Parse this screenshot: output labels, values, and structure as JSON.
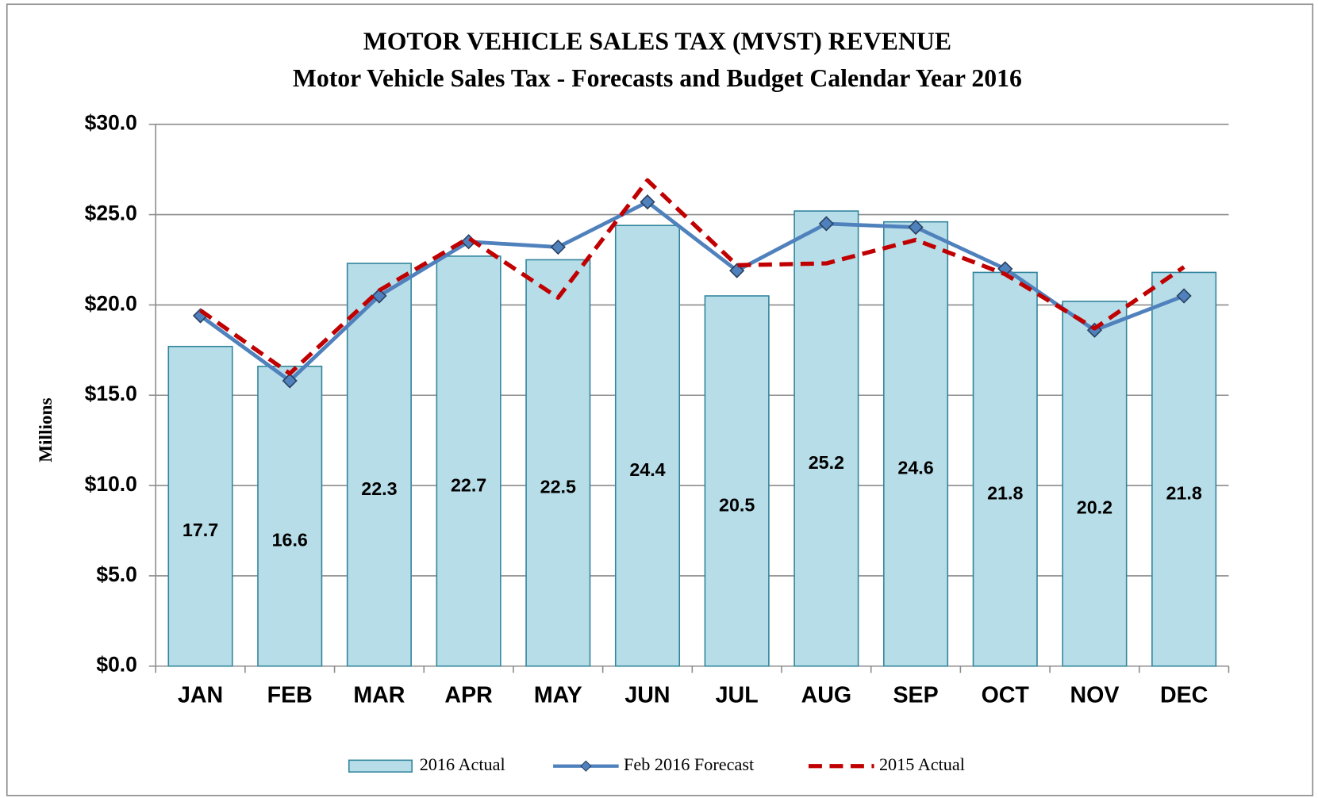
{
  "chart_data": {
    "type": "bar",
    "title": "MOTOR VEHICLE  SALES TAX (MVST) REVENUE",
    "subtitle": "Motor Vehicle Sales Tax - Forecasts and Budget Calendar Year 2016",
    "y_label": "Millions",
    "categories": [
      "JAN",
      "FEB",
      "MAR",
      "APR",
      "MAY",
      "JUN",
      "JUL",
      "AUG",
      "SEP",
      "OCT",
      "NOV",
      "DEC"
    ],
    "series": [
      {
        "name": "2016 Actual",
        "type": "bar",
        "color": "#b7dde8",
        "values": [
          17.7,
          16.6,
          22.3,
          22.7,
          22.5,
          24.4,
          20.5,
          25.2,
          24.6,
          21.8,
          20.2,
          21.8
        ]
      },
      {
        "name": "Feb 2016 Forecast",
        "type": "line",
        "color": "#4f81bd",
        "marker": "diamond",
        "values": [
          19.4,
          15.8,
          20.5,
          23.5,
          23.2,
          25.7,
          21.9,
          24.5,
          24.3,
          22.0,
          18.6,
          20.5
        ]
      },
      {
        "name": "2015 Actual",
        "type": "line",
        "color": "#c00000",
        "line_style": "dashed",
        "values": [
          19.7,
          16.2,
          20.8,
          23.7,
          20.4,
          26.9,
          22.2,
          22.3,
          23.6,
          21.7,
          18.7,
          22.1
        ]
      }
    ],
    "ylim": [
      0,
      30
    ],
    "yticks": [
      {
        "value": 0,
        "label": "$0.0"
      },
      {
        "value": 5,
        "label": "$5.0"
      },
      {
        "value": 10,
        "label": "$10.0"
      },
      {
        "value": 15,
        "label": "$15.0"
      },
      {
        "value": 20,
        "label": "$20.0"
      },
      {
        "value": 25,
        "label": "$25.0"
      },
      {
        "value": 30,
        "label": "$30.0"
      }
    ],
    "grid": true,
    "legend": "bottom"
  }
}
